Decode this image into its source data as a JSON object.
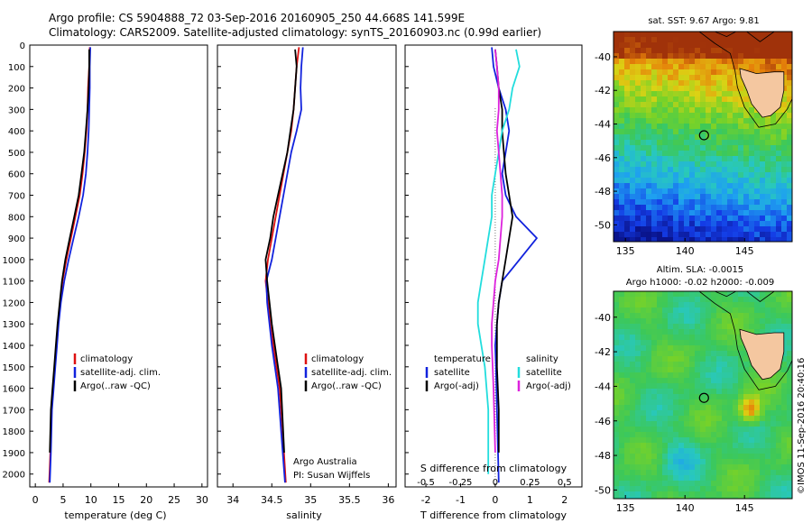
{
  "header": {
    "title_line1": "Argo profile: CS 5904888_72 03-Sep-2016 20160905_250 44.668S 141.599E",
    "title_line2": "Climatology: CARS2009. Satellite-adjusted climatology: synTS_20160903.nc (0.99d earlier)"
  },
  "colors": {
    "climatology": "#dd1111",
    "satellite": "#1122dd",
    "argo": "#000000",
    "salinity_satellite": "#22dddd",
    "salinity_argo": "#dd22dd"
  },
  "chart_data": [
    {
      "id": "temperature",
      "type": "line",
      "xlabel": "temperature (deg C)",
      "ylabel": "",
      "xlim": [
        -1,
        31
      ],
      "ylim": [
        2060,
        0
      ],
      "xticks": [
        0,
        5,
        10,
        15,
        20,
        25,
        30
      ],
      "xtick_labels": [
        "0",
        "5",
        "10",
        "15",
        "20",
        "25",
        "30"
      ],
      "yticks": [
        0,
        100,
        200,
        300,
        400,
        500,
        600,
        700,
        800,
        900,
        1000,
        1100,
        1200,
        1300,
        1400,
        1500,
        1600,
        1700,
        1800,
        1900,
        2000
      ],
      "legend": [
        "climatology",
        "satellite-adj. clim.",
        "Argo(..raw -QC)"
      ],
      "series": [
        {
          "name": "climatology",
          "color": "#dd1111",
          "x": [
            9.8,
            9.7,
            9.5,
            9.4,
            9.2,
            8.9,
            8.5,
            8.0,
            7.2,
            6.4,
            5.6,
            4.9,
            4.5,
            4.1,
            3.8,
            3.5,
            3.2,
            2.9,
            2.7,
            2.5
          ],
          "y": [
            10,
            100,
            200,
            300,
            400,
            500,
            600,
            700,
            800,
            900,
            1000,
            1100,
            1200,
            1300,
            1400,
            1500,
            1600,
            1700,
            1900,
            2040
          ]
        },
        {
          "name": "satellite-adj. clim.",
          "color": "#1122dd",
          "x": [
            9.9,
            9.8,
            9.8,
            9.7,
            9.6,
            9.4,
            9.1,
            8.6,
            7.8,
            6.9,
            6.0,
            5.2,
            4.6,
            4.2,
            3.9,
            3.6,
            3.3,
            3.0,
            2.8,
            2.6
          ],
          "y": [
            10,
            100,
            200,
            300,
            400,
            500,
            600,
            700,
            800,
            900,
            1000,
            1100,
            1200,
            1300,
            1400,
            1500,
            1600,
            1700,
            1900,
            2040
          ]
        },
        {
          "name": "Argo(..raw -QC)",
          "color": "#000000",
          "x": [
            9.7,
            9.7,
            9.6,
            9.4,
            9.1,
            8.8,
            8.3,
            7.8,
            7.0,
            6.2,
            5.4,
            4.8,
            4.4,
            4.0,
            3.7,
            3.4,
            3.1,
            2.8,
            2.6
          ],
          "y": [
            20,
            100,
            200,
            300,
            400,
            500,
            600,
            700,
            800,
            900,
            1000,
            1100,
            1200,
            1300,
            1400,
            1500,
            1600,
            1700,
            1900
          ]
        }
      ]
    },
    {
      "id": "salinity",
      "type": "line",
      "xlabel": "salinity",
      "ylabel": "",
      "xlim": [
        33.8,
        36.1
      ],
      "ylim": [
        2060,
        0
      ],
      "xticks": [
        34,
        34.5,
        35,
        35.5,
        36
      ],
      "xtick_labels": [
        "34",
        "34.5",
        "35",
        "35.5",
        "36"
      ],
      "legend": [
        "climatology",
        "satellite-adj. clim.",
        "Argo(..raw -QC)"
      ],
      "annotation_line1": "Argo Australia",
      "annotation_line2": "PI: Susan Wijffels",
      "series": [
        {
          "name": "climatology",
          "color": "#dd1111",
          "x": [
            34.85,
            34.82,
            34.8,
            34.78,
            34.75,
            34.7,
            34.65,
            34.6,
            34.55,
            34.5,
            34.45,
            34.42,
            34.45,
            34.48,
            34.52,
            34.56,
            34.6,
            34.64,
            34.68
          ],
          "y": [
            10,
            100,
            200,
            300,
            400,
            500,
            600,
            700,
            800,
            900,
            1000,
            1100,
            1200,
            1300,
            1400,
            1500,
            1600,
            1800,
            2040
          ]
        },
        {
          "name": "satellite-adj. clim.",
          "color": "#1122dd",
          "x": [
            34.9,
            34.88,
            34.87,
            34.88,
            34.82,
            34.75,
            34.7,
            34.65,
            34.6,
            34.55,
            34.5,
            34.43,
            34.44,
            34.47,
            34.5,
            34.54,
            34.58,
            34.62,
            34.67
          ],
          "y": [
            10,
            100,
            200,
            300,
            400,
            500,
            600,
            700,
            800,
            900,
            1000,
            1100,
            1200,
            1300,
            1400,
            1500,
            1600,
            1800,
            2040
          ]
        },
        {
          "name": "Argo(..raw -QC)",
          "color": "#000000",
          "x": [
            34.8,
            34.82,
            34.8,
            34.78,
            34.74,
            34.7,
            34.64,
            34.58,
            34.52,
            34.48,
            34.42,
            34.44,
            34.47,
            34.5,
            34.54,
            34.58,
            34.62,
            34.66
          ],
          "y": [
            20,
            100,
            200,
            300,
            400,
            500,
            600,
            700,
            800,
            900,
            1000,
            1100,
            1200,
            1300,
            1400,
            1500,
            1600,
            1900
          ]
        }
      ]
    },
    {
      "id": "difference",
      "type": "line",
      "xlabel": "T difference from climatology",
      "xlabel_top": "S difference from climatology",
      "xlim": [
        -2.6,
        2.5
      ],
      "ylim": [
        2060,
        0
      ],
      "xticks": [
        -2,
        -1,
        0,
        1,
        2
      ],
      "xtick_labels": [
        "-2",
        "-1",
        "0",
        "1",
        "2"
      ],
      "xticks_s_labels": [
        "-0.5",
        "-0.25",
        "0",
        "0.25",
        "0.5"
      ],
      "legend_temperature_title": "temperature",
      "legend_salinity_title": "salinity",
      "legend_temperature": [
        "satellite",
        "Argo(-adj)"
      ],
      "legend_salinity": [
        "satellite",
        "Argo(-adj)"
      ],
      "series": [
        {
          "name": "temperature satellite",
          "color": "#1122dd",
          "x": [
            -0.1,
            -0.05,
            0.1,
            0.3,
            0.4,
            0.3,
            0.2,
            0.3,
            0.6,
            1.2,
            0.7,
            0.2,
            0.1,
            0.05,
            0.0,
            0.02,
            0.05,
            0.08,
            0.1
          ],
          "y": [
            10,
            100,
            200,
            300,
            400,
            500,
            600,
            700,
            800,
            900,
            1000,
            1100,
            1200,
            1300,
            1400,
            1500,
            1700,
            1900,
            2040
          ]
        },
        {
          "name": "temperature Argo(-adj)",
          "color": "#000000",
          "x": [
            0.0,
            0.05,
            0.1,
            0.2,
            0.2,
            0.25,
            0.3,
            0.4,
            0.5,
            0.4,
            0.3,
            0.2,
            0.1,
            0.05,
            0.05,
            0.05,
            0.1,
            0.1
          ],
          "y": [
            20,
            100,
            200,
            300,
            400,
            500,
            600,
            700,
            800,
            900,
            1000,
            1100,
            1200,
            1300,
            1400,
            1500,
            1700,
            1900
          ]
        },
        {
          "name": "salinity satellite",
          "color": "#22dddd",
          "x": [
            0.6,
            0.7,
            0.5,
            0.4,
            0.2,
            0.1,
            0.0,
            -0.1,
            -0.1,
            -0.2,
            -0.3,
            -0.4,
            -0.5,
            -0.5,
            -0.4,
            -0.3,
            -0.2,
            -0.2
          ],
          "y": [
            20,
            100,
            200,
            300,
            400,
            500,
            600,
            700,
            800,
            900,
            1000,
            1100,
            1200,
            1300,
            1400,
            1500,
            1700,
            2000
          ]
        },
        {
          "name": "salinity Argo(-adj)",
          "color": "#dd22dd",
          "x": [
            0.0,
            0.05,
            0.1,
            0.1,
            0.05,
            0.1,
            0.15,
            0.2,
            0.2,
            0.15,
            0.1,
            0.0,
            -0.05,
            -0.1,
            -0.1,
            -0.05,
            0.0
          ],
          "y": [
            20,
            100,
            200,
            300,
            400,
            500,
            600,
            700,
            800,
            900,
            1000,
            1100,
            1200,
            1300,
            1400,
            1600,
            1900
          ]
        }
      ]
    },
    {
      "id": "sst_map",
      "type": "heatmap",
      "title": "sat. SST: 9.67 Argo: 9.81",
      "xlim": [
        134,
        149
      ],
      "ylim": [
        -51,
        -38.5
      ],
      "xticks": [
        135,
        140,
        145
      ],
      "xtick_labels": [
        "135",
        "140",
        "145"
      ],
      "yticks": [
        -40,
        -42,
        -44,
        -46,
        -48,
        -50
      ],
      "ytick_labels": [
        "-40",
        "-42",
        "-44",
        "-46",
        "-48",
        "-50"
      ],
      "profile_lon": 141.599,
      "profile_lat": -44.668
    },
    {
      "id": "sla_map",
      "type": "heatmap",
      "title_line1": "Altim. SLA: -0.0015",
      "title_line2": "Argo h1000: -0.02 h2000: -0.009",
      "xlim": [
        134,
        149
      ],
      "ylim": [
        -50.5,
        -38.5
      ],
      "xticks": [
        135,
        140,
        145
      ],
      "xtick_labels": [
        "135",
        "140",
        "145"
      ],
      "yticks": [
        -40,
        -42,
        -44,
        -46,
        -48,
        -50
      ],
      "ytick_labels": [
        "-40",
        "-42",
        "-44",
        "-46",
        "-48",
        "-50"
      ],
      "profile_lon": 141.599,
      "profile_lat": -44.668
    }
  ],
  "footer": {
    "credit": "©IMOS 11-Sep-2016 20:40:16"
  }
}
